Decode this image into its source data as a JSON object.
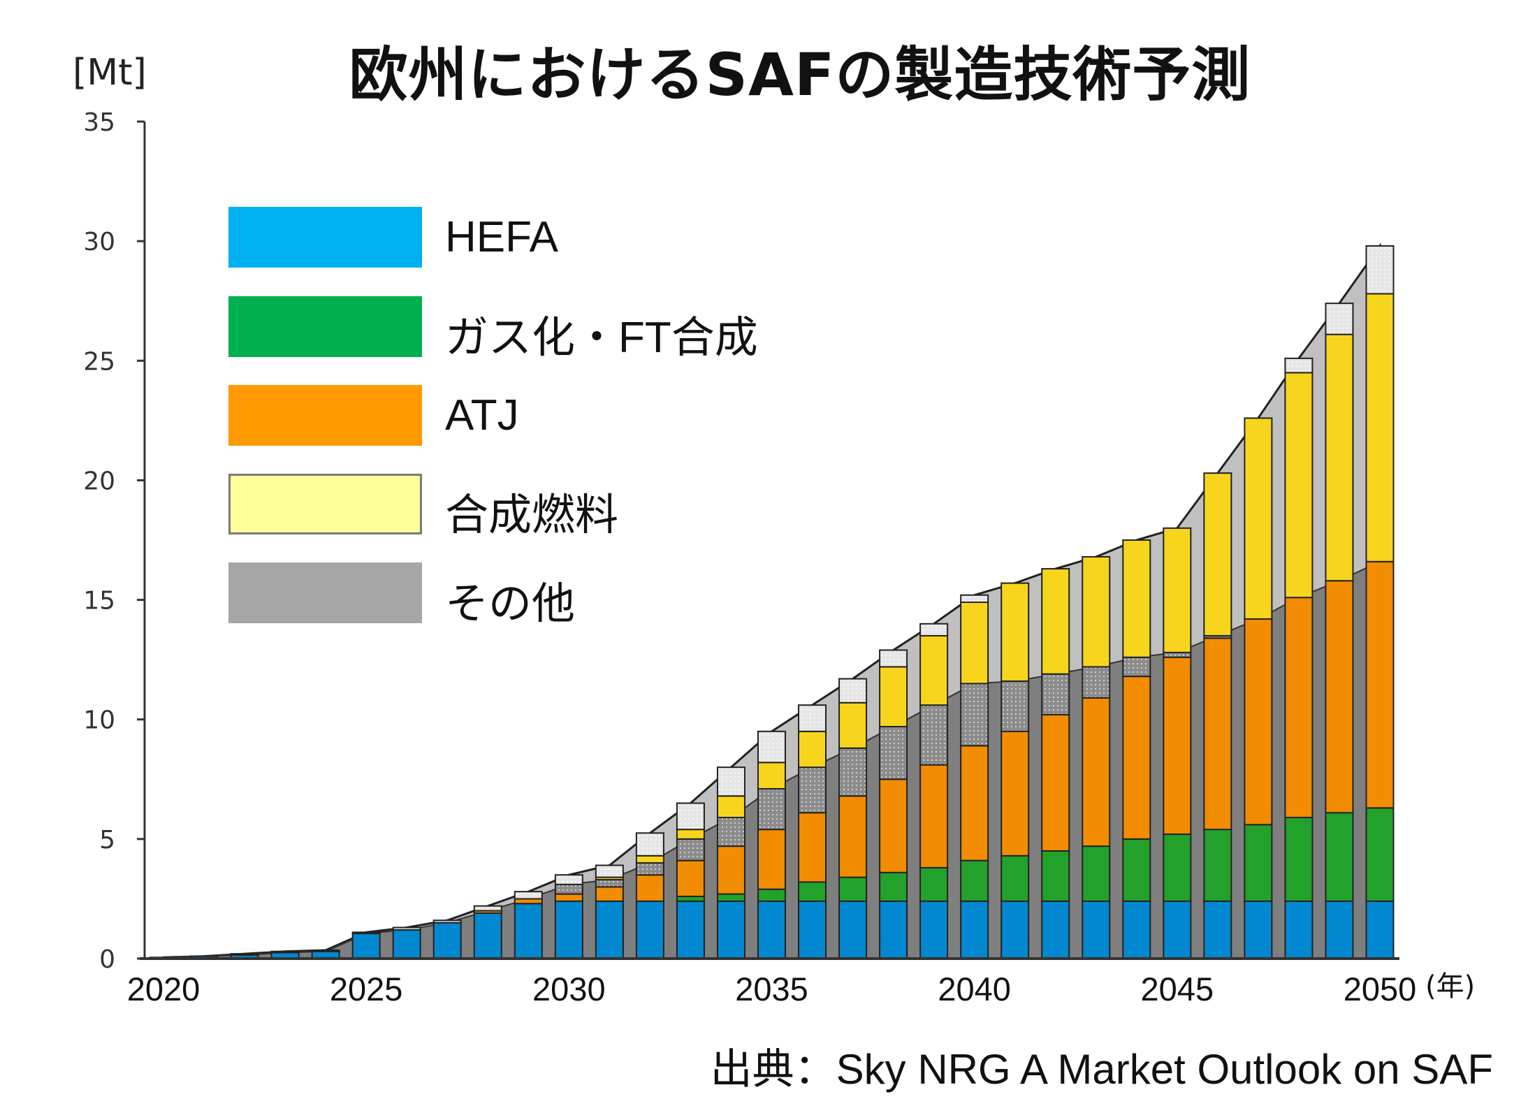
{
  "chart_data": {
    "type": "bar",
    "stacked": true,
    "title": "欧州におけるSAFの製造技術予測",
    "ylabel": "[Mt]",
    "xlabel": "(年)",
    "ylim": [
      0,
      35
    ],
    "yticks": [
      0,
      5,
      10,
      15,
      20,
      25,
      30,
      35
    ],
    "xticks": [
      2020,
      2025,
      2030,
      2035,
      2040,
      2045,
      2050
    ],
    "grid": false,
    "legend_position": "top-left",
    "categories": [
      2020,
      2021,
      2022,
      2023,
      2024,
      2025,
      2026,
      2027,
      2028,
      2029,
      2030,
      2031,
      2032,
      2033,
      2034,
      2035,
      2036,
      2037,
      2038,
      2039,
      2040,
      2041,
      2042,
      2043,
      2044,
      2045,
      2046,
      2047,
      2048,
      2049,
      2050
    ],
    "series": [
      {
        "name": "HEFA",
        "color": "#0288d1",
        "legend_color": "#00b0f0",
        "values": [
          0.05,
          0.1,
          0.15,
          0.25,
          0.3,
          1.05,
          1.2,
          1.5,
          1.9,
          2.3,
          2.4,
          2.4,
          2.4,
          2.4,
          2.4,
          2.4,
          2.4,
          2.4,
          2.4,
          2.4,
          2.4,
          2.4,
          2.4,
          2.4,
          2.4,
          2.4,
          2.4,
          2.4,
          2.4,
          2.4,
          2.4
        ]
      },
      {
        "name": "ガス化・FT合成",
        "color": "#22a22a",
        "legend_color": "#00b050",
        "values": [
          0,
          0,
          0,
          0,
          0,
          0,
          0,
          0,
          0,
          0,
          0,
          0,
          0,
          0.2,
          0.3,
          0.5,
          0.8,
          1.0,
          1.2,
          1.4,
          1.7,
          1.9,
          2.1,
          2.3,
          2.6,
          2.8,
          3.0,
          3.2,
          3.5,
          3.7,
          3.9
        ]
      },
      {
        "name": "ATJ",
        "color": "#f28c00",
        "legend_color": "#ff9900",
        "values": [
          0,
          0,
          0,
          0,
          0,
          0,
          0,
          0,
          0.1,
          0.2,
          0.3,
          0.6,
          1.1,
          1.5,
          2.0,
          2.5,
          2.9,
          3.4,
          3.9,
          4.3,
          4.8,
          5.2,
          5.7,
          6.2,
          6.8,
          7.4,
          8.0,
          8.6,
          9.2,
          9.7,
          10.3
        ]
      },
      {
        "name": "その他",
        "color": "#9a9a9a",
        "legend_color": "#a6a6a6",
        "values": [
          0,
          0,
          0,
          0,
          0,
          0,
          0,
          0,
          0,
          0,
          0.4,
          0.3,
          0.5,
          0.9,
          1.2,
          1.7,
          1.9,
          2.0,
          2.2,
          2.5,
          2.6,
          2.1,
          1.7,
          1.3,
          0.8,
          0.2,
          0.1,
          0,
          0,
          0,
          0
        ]
      },
      {
        "name": "合成燃料",
        "color": "#f7d51c",
        "legend_color": "#ffff99",
        "values": [
          0,
          0,
          0,
          0,
          0,
          0,
          0,
          0,
          0,
          0,
          0,
          0.1,
          0.3,
          0.4,
          0.9,
          1.1,
          1.5,
          1.9,
          2.5,
          2.9,
          3.4,
          4.1,
          4.4,
          4.6,
          4.9,
          5.2,
          6.8,
          8.4,
          9.4,
          10.3,
          11.2
        ]
      },
      {
        "color": "#e4e4e4",
        "values": [
          0,
          0,
          0.05,
          0.05,
          0.05,
          0.05,
          0.1,
          0.1,
          0.2,
          0.3,
          0.4,
          0.5,
          0.95,
          1.1,
          1.2,
          1.3,
          1.1,
          1.0,
          0.7,
          0.5,
          0.3,
          0,
          0,
          0,
          0,
          0,
          0,
          0,
          0.6,
          1.3,
          2.0
        ]
      }
    ],
    "area_colors": {
      "lower": "#7f7f7f",
      "upper": "#c0c0c0"
    }
  },
  "legend": [
    {
      "label": "HEFA",
      "color": "#00b0f0"
    },
    {
      "label": "ガス化・FT合成",
      "color": "#00b050"
    },
    {
      "label": "ATJ",
      "color": "#ff9900"
    },
    {
      "label": "合成燃料",
      "color": "#ffff99"
    },
    {
      "label": "その他",
      "color": "#a6a6a6"
    }
  ],
  "source": "出典：Sky NRG A Market Outlook on SAF"
}
